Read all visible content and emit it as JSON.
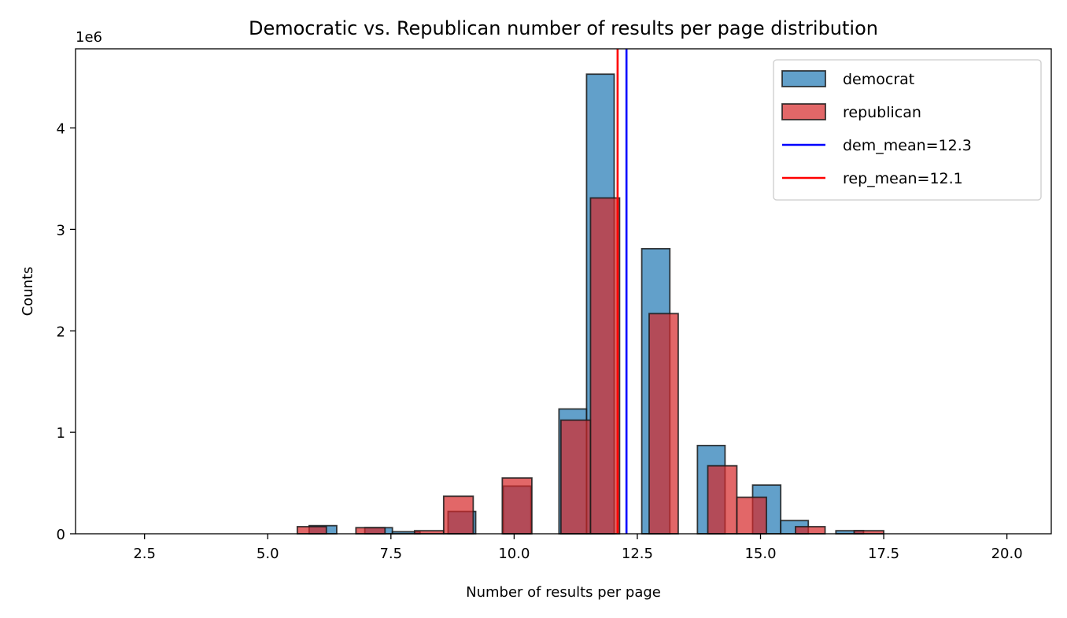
{
  "chart_data": {
    "type": "histogram",
    "title": "Democratic vs. Republican number of results per page distribution",
    "xlabel": "Number of results per page",
    "ylabel": "Counts",
    "y_scale_label": "1e6",
    "xlim": [
      1.1,
      20.9
    ],
    "ylim": [
      0,
      4.78
    ],
    "x_ticks": [
      2.5,
      5.0,
      7.5,
      10.0,
      12.5,
      15.0,
      17.5,
      20.0
    ],
    "x_tick_labels": [
      "2.5",
      "5.0",
      "7.5",
      "10.0",
      "12.5",
      "15.0",
      "17.5",
      "20.0"
    ],
    "y_ticks": [
      0,
      1,
      2,
      3,
      4
    ],
    "y_tick_labels": [
      "0",
      "1",
      "2",
      "3",
      "4"
    ],
    "legend_position": "upper right",
    "series": [
      {
        "name": "democrat",
        "color": "#1f77b4",
        "alpha": 0.7,
        "bins": [
          [
            5.84,
            6.4,
            0.08
          ],
          [
            6.97,
            7.53,
            0.06
          ],
          [
            7.53,
            8.09,
            0.02
          ],
          [
            8.66,
            9.22,
            0.22
          ],
          [
            9.78,
            10.34,
            0.47
          ],
          [
            10.91,
            11.47,
            1.23
          ],
          [
            11.47,
            12.03,
            4.53
          ],
          [
            12.59,
            13.16,
            2.81
          ],
          [
            13.72,
            14.28,
            0.87
          ],
          [
            14.84,
            15.41,
            0.48
          ],
          [
            15.41,
            15.97,
            0.13
          ],
          [
            16.53,
            17.09,
            0.03
          ]
        ]
      },
      {
        "name": "republican",
        "color": "#d62728",
        "alpha": 0.7,
        "bins": [
          [
            5.6,
            6.19,
            0.07
          ],
          [
            6.79,
            7.38,
            0.06
          ],
          [
            7.98,
            8.57,
            0.03
          ],
          [
            8.57,
            9.17,
            0.37
          ],
          [
            9.76,
            10.36,
            0.55
          ],
          [
            10.95,
            11.55,
            1.12
          ],
          [
            11.55,
            12.14,
            3.31
          ],
          [
            12.74,
            13.33,
            2.17
          ],
          [
            13.93,
            14.52,
            0.67
          ],
          [
            14.52,
            15.12,
            0.36
          ],
          [
            15.71,
            16.31,
            0.07
          ],
          [
            16.9,
            17.5,
            0.03
          ]
        ]
      }
    ],
    "mean_lines": [
      {
        "name": "dem_mean=12.3",
        "x": 12.28,
        "color": "#0000ff"
      },
      {
        "name": "rep_mean=12.1",
        "x": 12.1,
        "color": "#ff0000"
      }
    ]
  }
}
